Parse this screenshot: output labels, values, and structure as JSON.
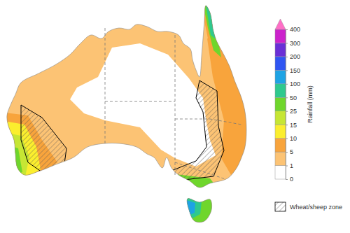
{
  "chart_data": {
    "type": "map",
    "colorbar": {
      "title": "Rainfall (mm)",
      "ticks": [
        0,
        1,
        5,
        10,
        15,
        25,
        50,
        100,
        150,
        200,
        300,
        400
      ],
      "colors": [
        "#ffffff",
        "#fcc374",
        "#f8a43c",
        "#fbee2e",
        "#c6e634",
        "#6fd62c",
        "#2ec98e",
        "#1ea3e4",
        "#2f55f2",
        "#6a2fd6",
        "#cc22cc",
        "#ff6ec7"
      ]
    },
    "zone_label": "Wheat/sheep zone"
  }
}
